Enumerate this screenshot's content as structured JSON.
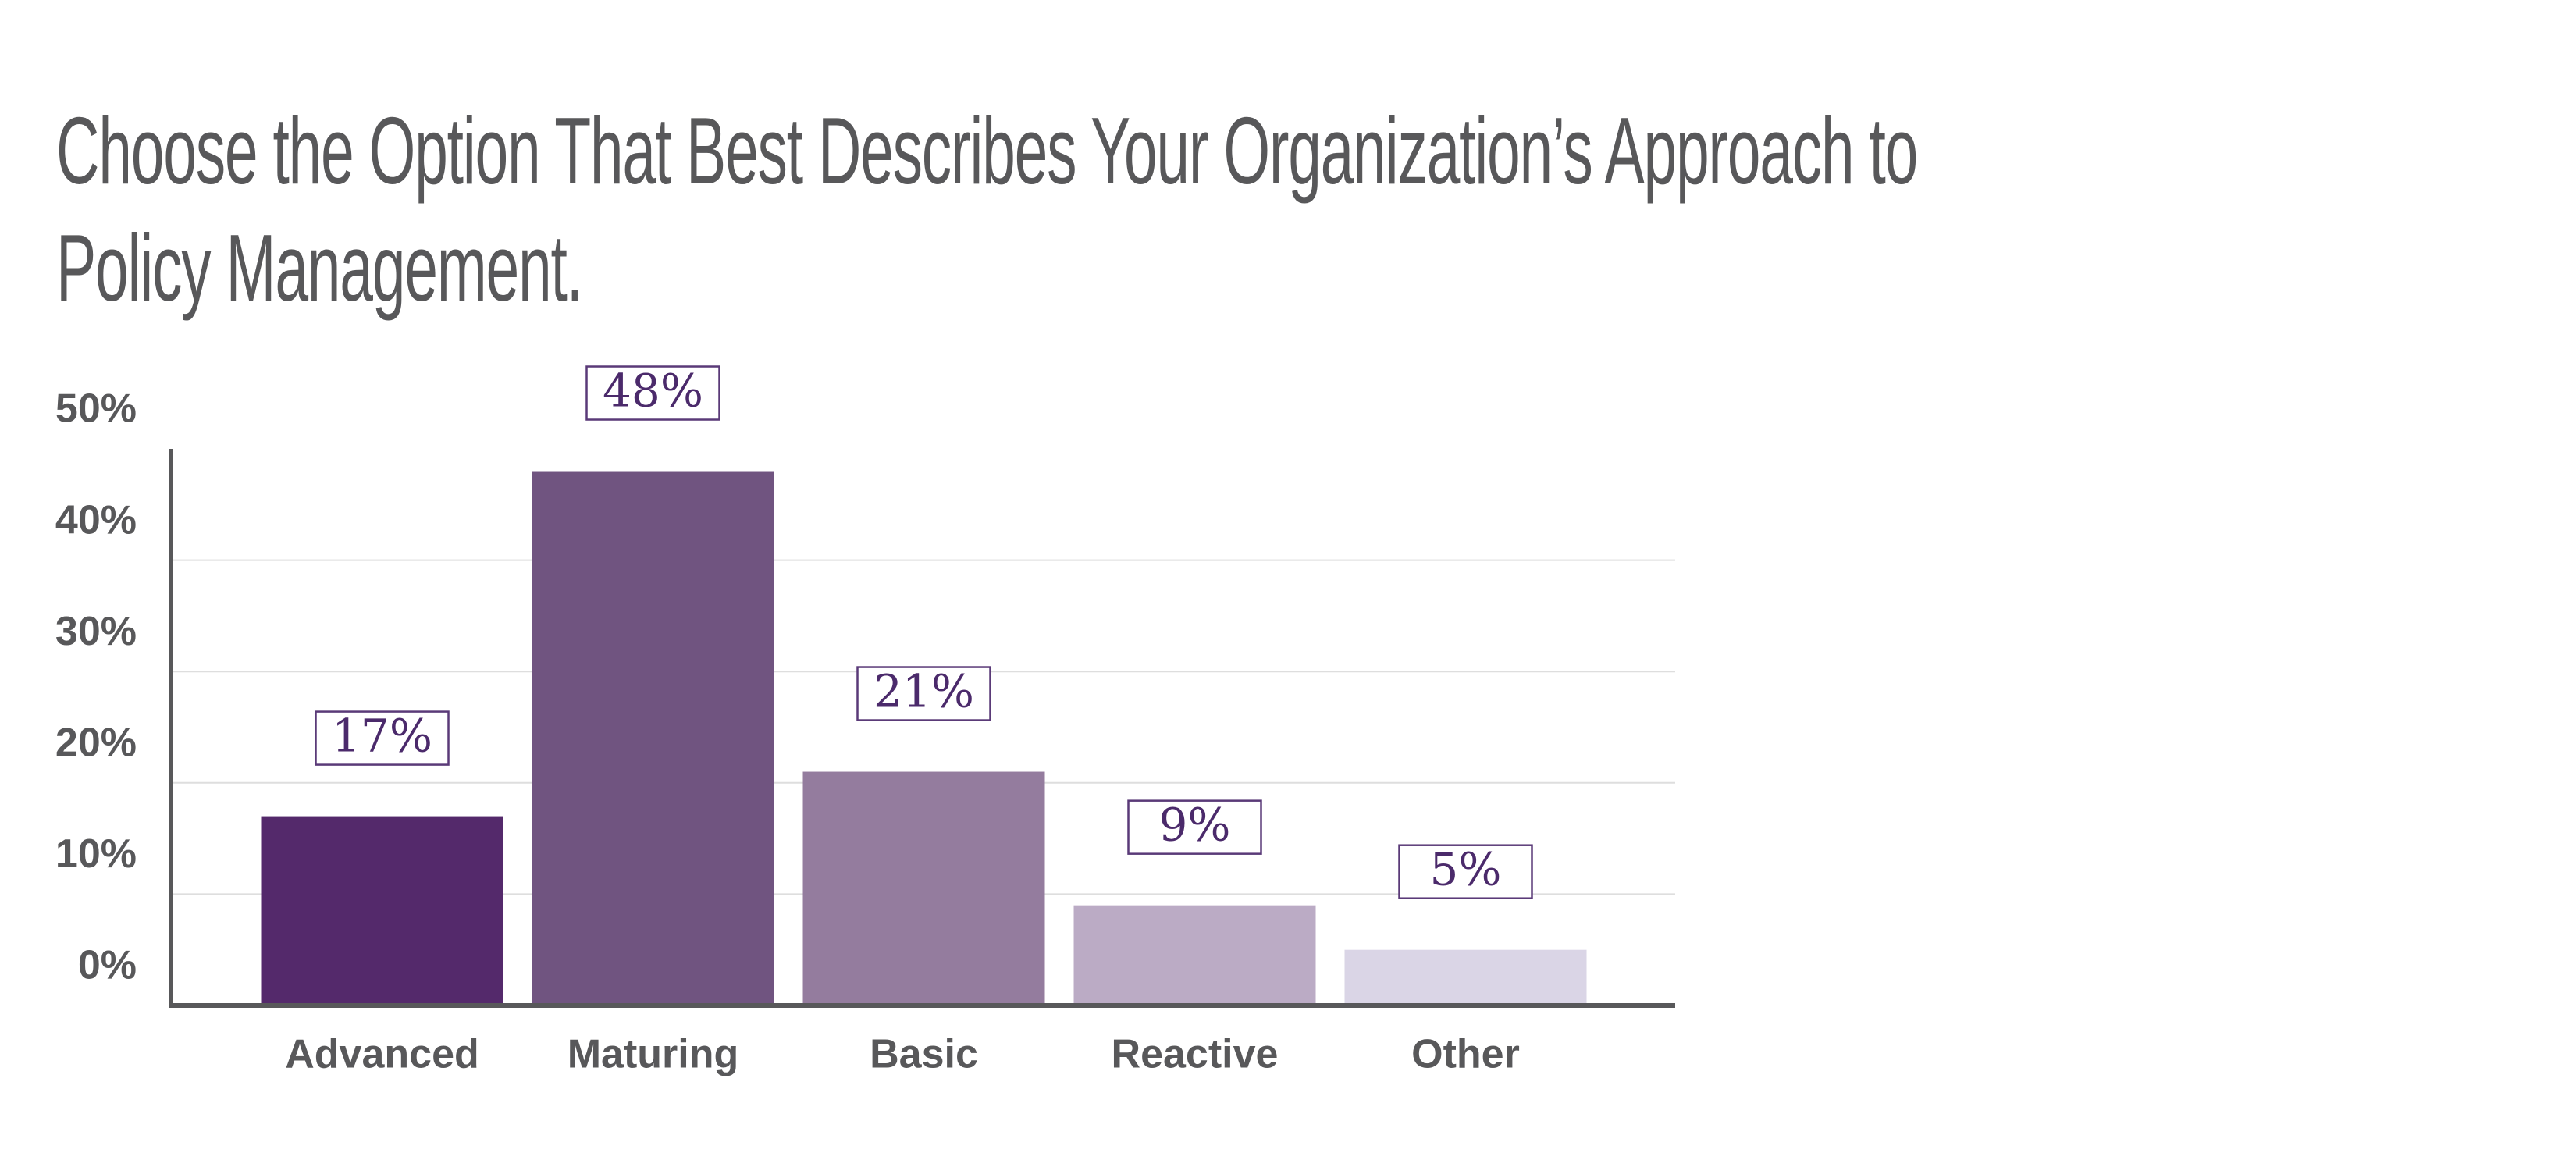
{
  "chart_data": {
    "type": "bar",
    "title": "Choose the Option That Best Describes Your Organization’s Approach to Policy Management.",
    "categories": [
      "Advanced",
      "Maturing",
      "Basic",
      "Reactive",
      "Other"
    ],
    "values": [
      17,
      48,
      21,
      9,
      5
    ],
    "value_labels": [
      "17%",
      "48%",
      "21%",
      "9%",
      "5%"
    ],
    "colors": [
      "#54296b",
      "#705480",
      "#947c9e",
      "#bbabc5",
      "#dad5e6"
    ],
    "ylim": [
      0,
      50
    ],
    "yticks": [
      {
        "value": 0,
        "label": "0%"
      },
      {
        "value": 10,
        "label": "10%"
      },
      {
        "value": 20,
        "label": "20%"
      },
      {
        "value": 30,
        "label": "30%"
      },
      {
        "value": 40,
        "label": "40%"
      },
      {
        "value": 50,
        "label": "50%"
      }
    ],
    "grid": true
  }
}
